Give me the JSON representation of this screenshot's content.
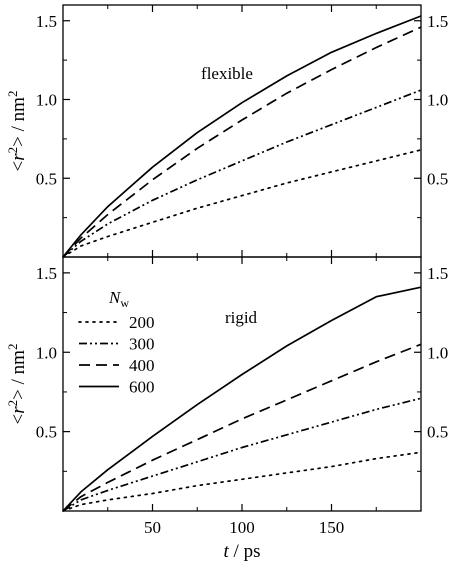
{
  "chart_data": [
    {
      "type": "line",
      "annotation": "flexible",
      "ylabel": {
        "prefix": "<",
        "var": "r",
        "sup": "2",
        "suffix": "> / nm",
        "unit_sup": "2"
      },
      "xlim": [
        0,
        200
      ],
      "ylim": [
        0,
        1.6
      ],
      "yticks": [
        0.5,
        1.0,
        1.5
      ],
      "ytick_labels": [
        "0.5",
        "1.0",
        "1.5"
      ],
      "series": [
        {
          "name": "200",
          "dash": "dotted",
          "x": [
            0,
            10,
            25,
            50,
            75,
            100,
            125,
            150,
            175,
            200
          ],
          "y": [
            0,
            0.07,
            0.13,
            0.22,
            0.31,
            0.39,
            0.47,
            0.54,
            0.61,
            0.68
          ]
        },
        {
          "name": "300",
          "dash": "dash-dot-dot",
          "x": [
            0,
            10,
            25,
            50,
            75,
            100,
            125,
            150,
            175,
            200
          ],
          "y": [
            0,
            0.1,
            0.21,
            0.36,
            0.49,
            0.61,
            0.73,
            0.84,
            0.95,
            1.06
          ]
        },
        {
          "name": "400",
          "dash": "dashed",
          "x": [
            0,
            10,
            25,
            50,
            75,
            100,
            125,
            150,
            175,
            200
          ],
          "y": [
            0,
            0.12,
            0.27,
            0.49,
            0.69,
            0.87,
            1.04,
            1.19,
            1.33,
            1.46
          ]
        },
        {
          "name": "600",
          "dash": "solid",
          "x": [
            0,
            10,
            25,
            50,
            75,
            100,
            125,
            150,
            175,
            200
          ],
          "y": [
            0,
            0.14,
            0.32,
            0.57,
            0.79,
            0.98,
            1.15,
            1.3,
            1.42,
            1.53
          ]
        }
      ]
    },
    {
      "type": "line",
      "annotation": "rigid",
      "xlabel": {
        "var": "t",
        "suffix": " / ps"
      },
      "ylabel": {
        "prefix": "<",
        "var": "r",
        "sup": "2",
        "suffix": "> / nm",
        "unit_sup": "2"
      },
      "xlim": [
        0,
        200
      ],
      "ylim": [
        0,
        1.6
      ],
      "xticks": [
        50,
        100,
        150
      ],
      "xtick_labels": [
        "50",
        "100",
        "150"
      ],
      "yticks": [
        0.5,
        1.0,
        1.5
      ],
      "ytick_labels": [
        "0.5",
        "1.0",
        "1.5"
      ],
      "legend": {
        "title_var": "N",
        "title_sub": "w",
        "placement": "upper-left",
        "entries": [
          "200",
          "300",
          "400",
          "600"
        ]
      },
      "series": [
        {
          "name": "200",
          "dash": "dotted",
          "x": [
            0,
            10,
            25,
            50,
            75,
            100,
            125,
            150,
            175,
            200
          ],
          "y": [
            0,
            0.04,
            0.07,
            0.11,
            0.16,
            0.2,
            0.24,
            0.28,
            0.33,
            0.37
          ]
        },
        {
          "name": "300",
          "dash": "dash-dot-dot",
          "x": [
            0,
            10,
            25,
            50,
            75,
            100,
            125,
            150,
            175,
            200
          ],
          "y": [
            0,
            0.07,
            0.13,
            0.22,
            0.31,
            0.4,
            0.48,
            0.56,
            0.64,
            0.71
          ]
        },
        {
          "name": "400",
          "dash": "dashed",
          "x": [
            0,
            10,
            25,
            50,
            75,
            100,
            125,
            150,
            175,
            200
          ],
          "y": [
            0,
            0.09,
            0.18,
            0.32,
            0.45,
            0.58,
            0.7,
            0.82,
            0.94,
            1.05
          ]
        },
        {
          "name": "600",
          "dash": "solid",
          "x": [
            0,
            10,
            25,
            50,
            75,
            100,
            125,
            150,
            175,
            200
          ],
          "y": [
            0,
            0.12,
            0.26,
            0.47,
            0.67,
            0.86,
            1.04,
            1.2,
            1.35,
            1.41
          ]
        }
      ]
    }
  ]
}
